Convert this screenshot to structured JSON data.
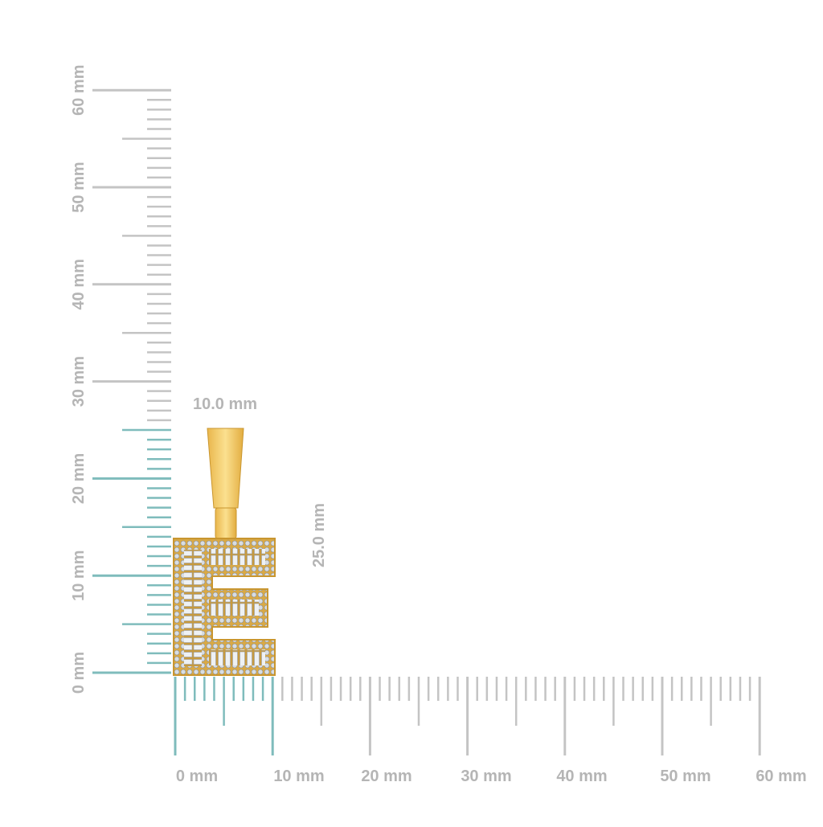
{
  "x_ruler": {
    "labels": [
      "0 mm",
      "10 mm",
      "20 mm",
      "30 mm",
      "40 mm",
      "50 mm",
      "60 mm"
    ]
  },
  "y_ruler": {
    "labels": [
      "0 mm",
      "10 mm",
      "20 mm",
      "30 mm",
      "40 mm",
      "50 mm",
      "60 mm"
    ]
  },
  "dimensions": {
    "width": "10.0 mm",
    "height": "25.0 mm"
  }
}
